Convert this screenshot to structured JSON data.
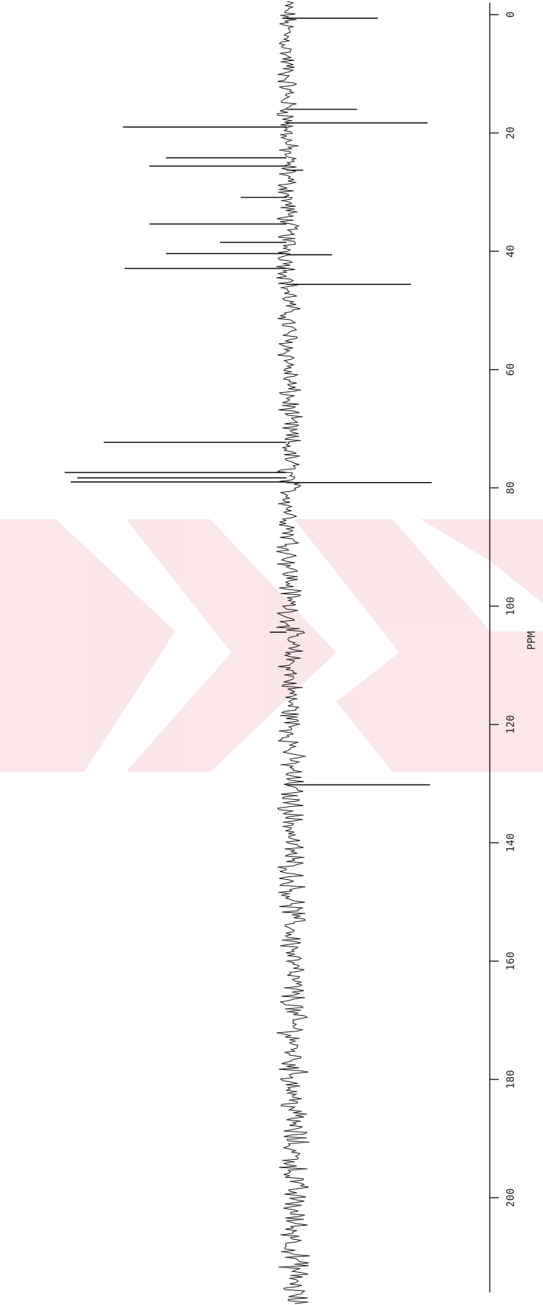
{
  "chart_data": {
    "type": "spectrum",
    "x_label": "PPM",
    "xlim": [
      -2,
      216
    ],
    "xticks": [
      0,
      20,
      40,
      60,
      80,
      100,
      120,
      140,
      160,
      180,
      200
    ],
    "ylim": [
      -309,
      345
    ],
    "color": "#111111",
    "x": [
      0.6,
      16,
      18.3,
      19,
      24.2,
      25.6,
      26.3,
      30.9,
      35.4,
      38.5,
      40.4,
      40.6,
      42.9,
      45.6,
      72.3,
      77.4,
      78.3,
      79,
      79.1,
      104.4,
      130.2
    ],
    "values": [
      -110,
      -85,
      -170,
      197,
      145,
      165,
      -20,
      55,
      165,
      80,
      145,
      -55,
      195,
      -150,
      220,
      267,
      252,
      260,
      -175,
      20,
      -173
    ]
  }
}
